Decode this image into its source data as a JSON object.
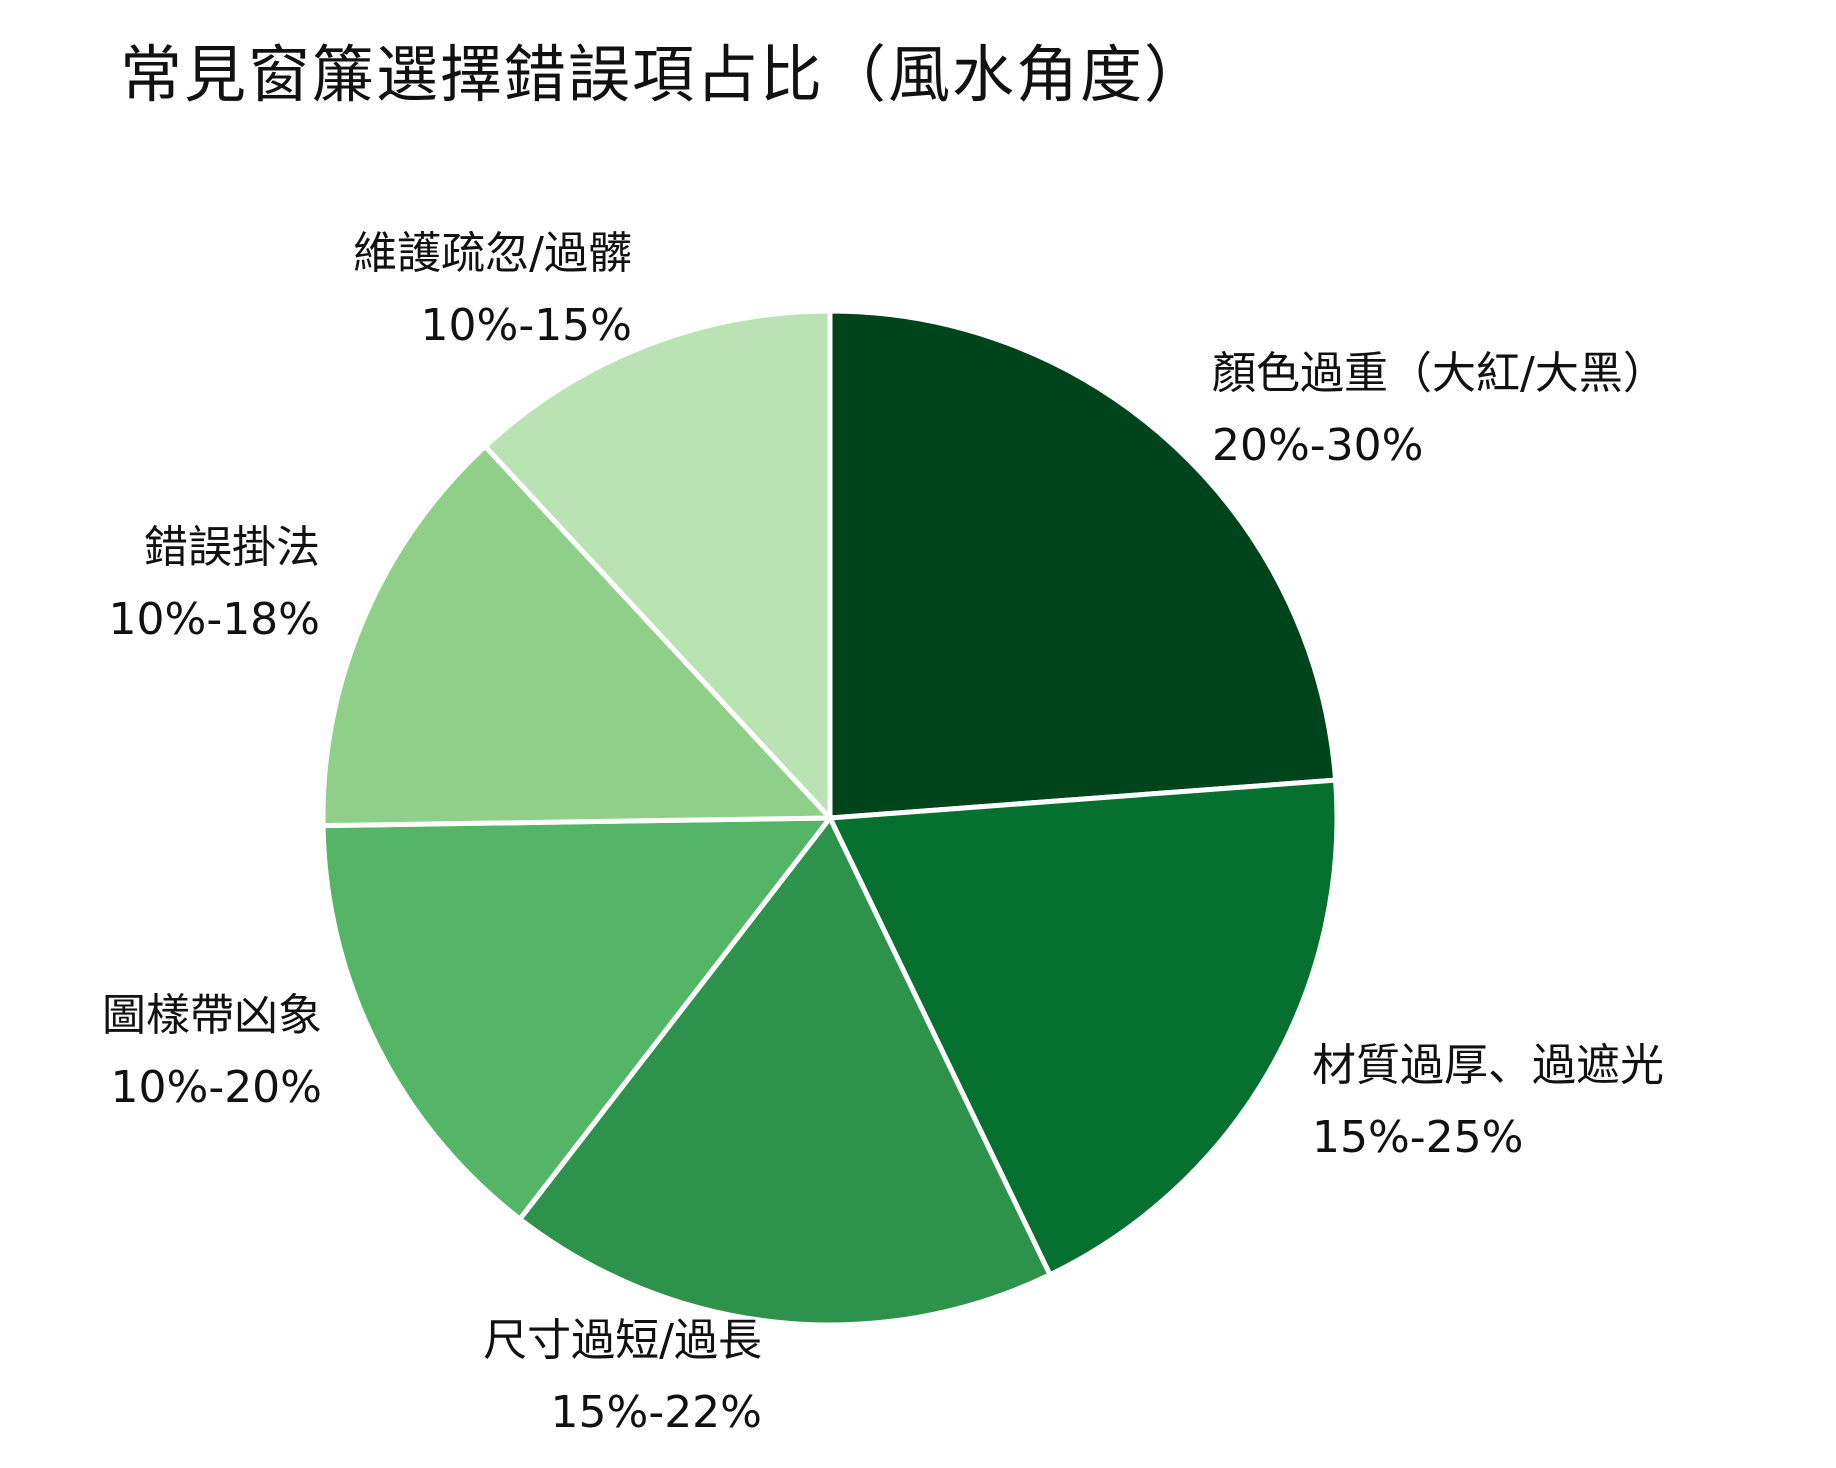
{
  "chart_data": {
    "type": "pie",
    "title": "常見窗簾選擇錯誤項占比（風水角度）",
    "start_angle_deg": 0,
    "direction": "clockwise",
    "slices": [
      {
        "label": "顏色過重（大紅/大黑）",
        "range_text": "20%-30%",
        "value": 25,
        "color": "#00441b"
      },
      {
        "label": "材質過厚、過遮光",
        "range_text": "15%-25%",
        "value": 20,
        "color": "#067030"
      },
      {
        "label": "尺寸過短/過長",
        "range_text": "15%-22%",
        "value": 18.5,
        "color": "#2d924b"
      },
      {
        "label": "圖樣帶凶象",
        "range_text": "10%-20%",
        "value": 15,
        "color": "#55b567"
      },
      {
        "label": "錯誤掛法",
        "range_text": "10%-18%",
        "value": 14,
        "color": "#8fcf89"
      },
      {
        "label": "維護疏忽/過髒",
        "range_text": "10%-15%",
        "value": 12.5,
        "color": "#b9e3b2"
      }
    ]
  }
}
